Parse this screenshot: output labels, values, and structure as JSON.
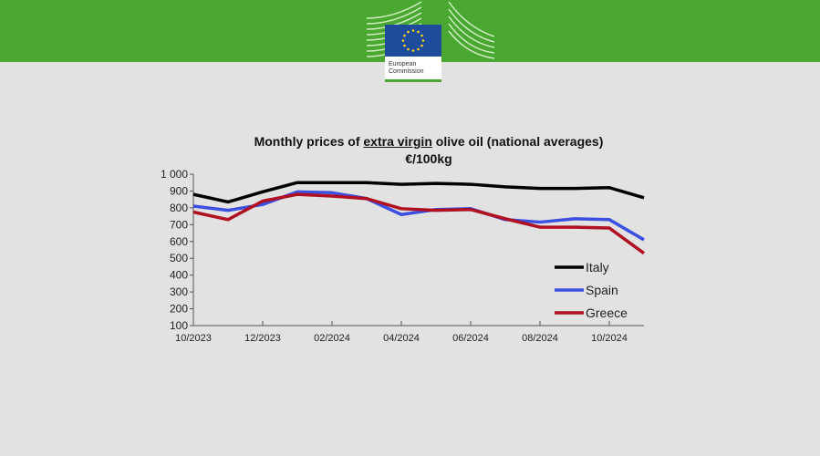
{
  "logo": {
    "text_line1": "European",
    "text_line2": "Commission"
  },
  "chart_data": {
    "type": "line",
    "title_pre": "Monthly prices of ",
    "title_underlined": "extra virgin",
    "title_post": " olive oil (national averages)",
    "subtitle": "€/100kg",
    "xlabel": "",
    "ylabel": "",
    "x": [
      "10/2023",
      "11/2023",
      "12/2023",
      "01/2024",
      "02/2024",
      "03/2024",
      "04/2024",
      "05/2024",
      "06/2024",
      "07/2024",
      "08/2024",
      "09/2024",
      "10/2024",
      "11/2024"
    ],
    "x_tick_labels": [
      "10/2023",
      "12/2023",
      "02/2024",
      "04/2024",
      "06/2024",
      "08/2024",
      "10/2024"
    ],
    "y_tick_labels": [
      "100",
      "200",
      "300",
      "400",
      "500",
      "600",
      "700",
      "800",
      "900",
      "1 000"
    ],
    "ylim": [
      100,
      1000
    ],
    "grid": false,
    "legend": "right",
    "series": [
      {
        "name": "Italy",
        "color": "#000000",
        "values": [
          880,
          835,
          895,
          950,
          950,
          950,
          940,
          945,
          940,
          925,
          915,
          915,
          920,
          860
        ]
      },
      {
        "name": "Spain",
        "color": "#3b4fe0",
        "values": [
          810,
          785,
          820,
          895,
          890,
          855,
          760,
          790,
          795,
          730,
          715,
          735,
          730,
          610
        ]
      },
      {
        "name": "Greece",
        "color": "#b01020",
        "values": [
          775,
          730,
          840,
          880,
          870,
          855,
          795,
          785,
          790,
          735,
          685,
          685,
          680,
          530
        ]
      }
    ]
  }
}
